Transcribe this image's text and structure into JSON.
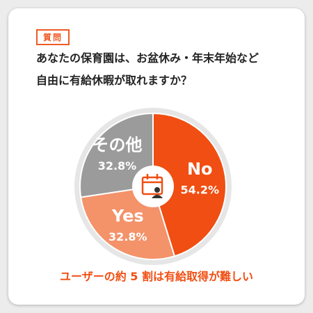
{
  "question_tag": "質問",
  "question": [
    "あなたの保育園は、お盆休み・年末年始など",
    "自由に有給休暇が取れますか？"
  ],
  "chart_data": {
    "type": "pie",
    "categories": [
      "No",
      "Yes",
      "その他"
    ],
    "values": [
      54.2,
      32.8,
      32.8
    ],
    "value_labels": [
      "54.2%",
      "32.8%",
      "32.8%"
    ],
    "colors": [
      "#f04e12",
      "#f4926a",
      "#9b9b9b"
    ]
  },
  "caption": "ユーザーの約 5 割は有給取得が難しい"
}
